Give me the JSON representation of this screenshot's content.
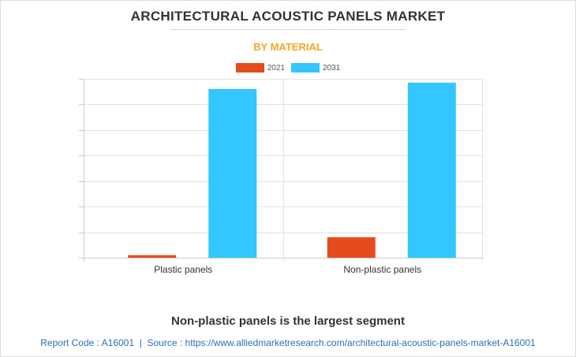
{
  "title": "ARCHITECTURAL ACOUSTIC PANELS MARKET",
  "subtitle": "BY MATERIAL",
  "headline": "Non-plastic panels is the largest segment",
  "footer": {
    "report_code": "Report Code : A16001",
    "separator": "|",
    "source": "Source : https://www.alliedmarketresearch.com/architectural-acoustic-panels-market-A16001"
  },
  "colors": {
    "s2021": "#e44d1b",
    "s2031": "#33c6ff",
    "grid": "#e3e3e3",
    "axis": "#cccccc"
  },
  "chart_data": {
    "type": "bar",
    "categories": [
      "Plastic panels",
      "Non-plastic panels"
    ],
    "series": [
      {
        "name": "2021",
        "values": [
          0.1,
          0.8
        ]
      },
      {
        "name": "2031",
        "values": [
          6.6,
          6.85
        ]
      }
    ],
    "ylim": [
      0,
      7
    ],
    "grid": true,
    "legend": "top-center"
  }
}
